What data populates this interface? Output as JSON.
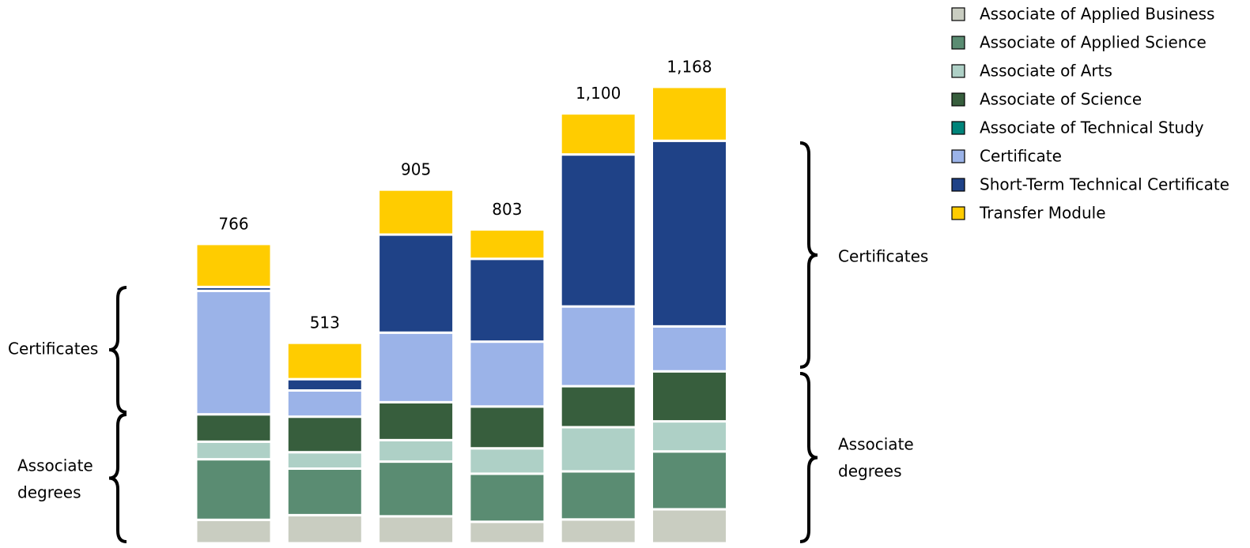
{
  "chart_data": {
    "type": "stacked_bar",
    "categories": [
      null,
      null,
      null,
      null,
      null,
      null
    ],
    "series": [
      {
        "name": "Associate of Applied Business",
        "color": "#c9cdc1",
        "values": [
          60,
          72,
          69,
          55,
          61,
          87
        ]
      },
      {
        "name": "Associate of Applied Science",
        "color": "#5a8c72",
        "values": [
          155,
          119,
          140,
          123,
          123,
          148
        ]
      },
      {
        "name": "Associate of Arts",
        "color": "#aed0c6",
        "values": [
          45,
          42,
          55,
          65,
          113,
          77
        ]
      },
      {
        "name": "Associate of Science",
        "color": "#375e3d",
        "values": [
          70,
          91,
          97,
          107,
          105,
          128
        ]
      },
      {
        "name": "Associate of Technical Study",
        "color": "#00847a",
        "values": [
          0,
          0,
          0,
          0,
          0,
          0
        ]
      },
      {
        "name": "Certificate",
        "color": "#9bb3e8",
        "values": [
          316,
          67,
          178,
          166,
          204,
          115
        ]
      },
      {
        "name": "Short-Term Technical Certificate",
        "color": "#1f4287",
        "values": [
          10,
          29,
          251,
          212,
          389,
          475
        ]
      },
      {
        "name": "Transfer Module",
        "color": "#ffcc00",
        "values": [
          110,
          93,
          115,
          75,
          105,
          138
        ]
      }
    ],
    "totals": [
      766,
      513,
      905,
      803,
      1100,
      1168
    ],
    "total_labels": [
      "766",
      "513",
      "905",
      "803",
      "1,100",
      "1,168"
    ],
    "ylim": [
      0,
      1168
    ],
    "annotations": [
      {
        "lines": [
          "Certificates"
        ]
      },
      {
        "lines": [
          "Associate",
          "degrees"
        ]
      },
      {
        "lines": [
          "Certificates"
        ]
      },
      {
        "lines": [
          "Associate",
          "degrees"
        ]
      }
    ]
  }
}
